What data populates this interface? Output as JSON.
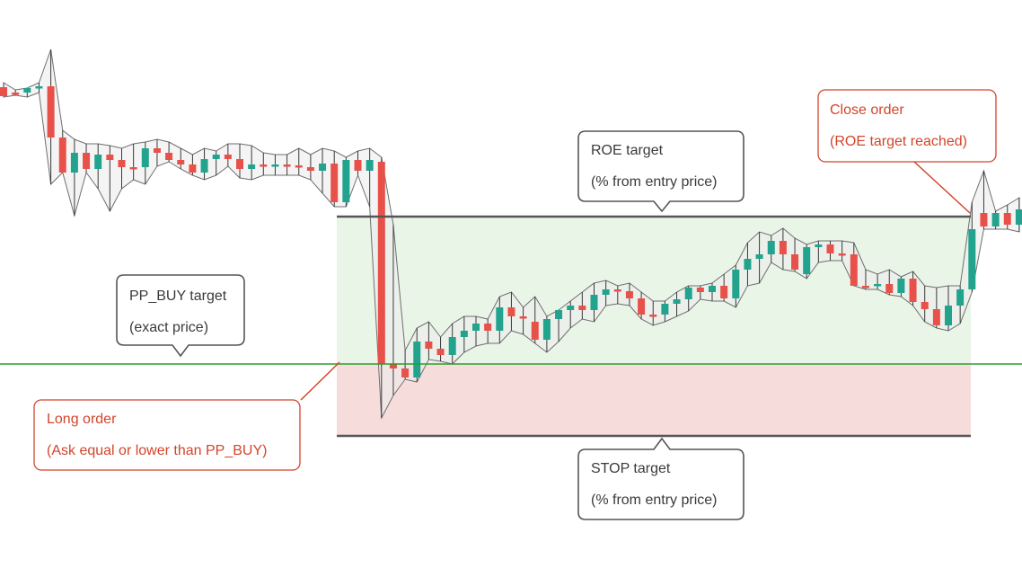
{
  "colors": {
    "up_candle": "#22a38e",
    "down_candle": "#e8514a",
    "wick": "#3a3a3a",
    "envelope_fill": "#ececec",
    "envelope_stroke": "#6f6f6f",
    "roe_zone": "#e9f5e7",
    "stop_zone": "#f7dcdc",
    "pp_buy_line": "#2e9b2e",
    "target_line": "#555555",
    "gray_callout": "#555555",
    "red_callout": "#d2452b"
  },
  "callouts": {
    "pp_buy": {
      "line1": "PP_BUY target",
      "line2": "(exact price)"
    },
    "roe": {
      "line1": "ROE target",
      "line2": "(% from entry price)"
    },
    "stop": {
      "line1": "STOP target",
      "line2": "(% from entry price)"
    },
    "long_order": {
      "line1": "Long order",
      "line2": "(Ask equal or lower than PP_BUY)"
    },
    "close_order": {
      "line1": "Close order",
      "line2": "(ROE target reached)"
    }
  },
  "chart_data": {
    "type": "candlestick",
    "levels": {
      "pp_buy": 405,
      "roe_target": 241,
      "stop_target": 485
    },
    "candles": [
      [
        97,
        92,
        108,
        107
      ],
      [
        103,
        100,
        106,
        103
      ],
      [
        103,
        98,
        108,
        98
      ],
      [
        98,
        92,
        103,
        96
      ],
      [
        96,
        55,
        205,
        153
      ],
      [
        153,
        145,
        185,
        192
      ],
      [
        192,
        155,
        240,
        170
      ],
      [
        170,
        160,
        192,
        188
      ],
      [
        188,
        160,
        210,
        172
      ],
      [
        172,
        162,
        235,
        178
      ],
      [
        178,
        165,
        210,
        186
      ],
      [
        186,
        160,
        200,
        186
      ],
      [
        186,
        158,
        205,
        165
      ],
      [
        165,
        155,
        185,
        170
      ],
      [
        170,
        158,
        180,
        178
      ],
      [
        178,
        165,
        188,
        183
      ],
      [
        183,
        172,
        195,
        192
      ],
      [
        192,
        165,
        200,
        177
      ],
      [
        177,
        168,
        195,
        172
      ],
      [
        172,
        160,
        185,
        177
      ],
      [
        177,
        160,
        198,
        188
      ],
      [
        188,
        162,
        200,
        183
      ],
      [
        183,
        170,
        195,
        185
      ],
      [
        185,
        172,
        195,
        183
      ],
      [
        183,
        172,
        195,
        184
      ],
      [
        184,
        165,
        195,
        186
      ],
      [
        186,
        172,
        200,
        190
      ],
      [
        190,
        165,
        215,
        182
      ],
      [
        182,
        168,
        230,
        225
      ],
      [
        225,
        175,
        230,
        178
      ],
      [
        178,
        168,
        195,
        190
      ],
      [
        190,
        165,
        230,
        178
      ],
      [
        180,
        175,
        465,
        405
      ],
      [
        405,
        250,
        440,
        410
      ],
      [
        410,
        390,
        422,
        420
      ],
      [
        420,
        365,
        425,
        380
      ],
      [
        380,
        358,
        400,
        388
      ],
      [
        388,
        375,
        402,
        395
      ],
      [
        395,
        360,
        405,
        375
      ],
      [
        375,
        352,
        392,
        368
      ],
      [
        368,
        352,
        385,
        360
      ],
      [
        360,
        355,
        382,
        368
      ],
      [
        368,
        330,
        382,
        342
      ],
      [
        342,
        325,
        368,
        352
      ],
      [
        352,
        342,
        372,
        352
      ],
      [
        358,
        330,
        382,
        378
      ],
      [
        378,
        352,
        392,
        355
      ],
      [
        355,
        345,
        380,
        345
      ],
      [
        345,
        335,
        365,
        340
      ],
      [
        340,
        325,
        355,
        345
      ],
      [
        345,
        315,
        358,
        328
      ],
      [
        328,
        312,
        340,
        322
      ],
      [
        322,
        318,
        338,
        324
      ],
      [
        324,
        315,
        340,
        332
      ],
      [
        332,
        325,
        355,
        350
      ],
      [
        350,
        335,
        362,
        350
      ],
      [
        350,
        335,
        358,
        338
      ],
      [
        338,
        325,
        352,
        333
      ],
      [
        333,
        318,
        346,
        320
      ],
      [
        320,
        318,
        333,
        325
      ],
      [
        325,
        315,
        335,
        318
      ],
      [
        318,
        305,
        335,
        332
      ],
      [
        332,
        295,
        342,
        300
      ],
      [
        300,
        270,
        318,
        288
      ],
      [
        288,
        258,
        315,
        283
      ],
      [
        283,
        262,
        292,
        268
      ],
      [
        268,
        254,
        300,
        283
      ],
      [
        283,
        265,
        302,
        300
      ],
      [
        305,
        272,
        310,
        275
      ],
      [
        275,
        268,
        292,
        272
      ],
      [
        272,
        268,
        290,
        282
      ],
      [
        282,
        268,
        290,
        283
      ],
      [
        283,
        270,
        302,
        318
      ],
      [
        318,
        300,
        322,
        318
      ],
      [
        318,
        305,
        322,
        316
      ],
      [
        316,
        300,
        328,
        326
      ],
      [
        326,
        308,
        330,
        310
      ],
      [
        310,
        302,
        340,
        336
      ],
      [
        336,
        318,
        358,
        344
      ],
      [
        344,
        320,
        365,
        362
      ],
      [
        362,
        318,
        368,
        340
      ],
      [
        340,
        318,
        360,
        322
      ],
      [
        322,
        225,
        325,
        255
      ],
      [
        237,
        190,
        255,
        252
      ],
      [
        252,
        235,
        255,
        237
      ],
      [
        237,
        228,
        255,
        250
      ],
      [
        250,
        220,
        258,
        233
      ]
    ]
  }
}
